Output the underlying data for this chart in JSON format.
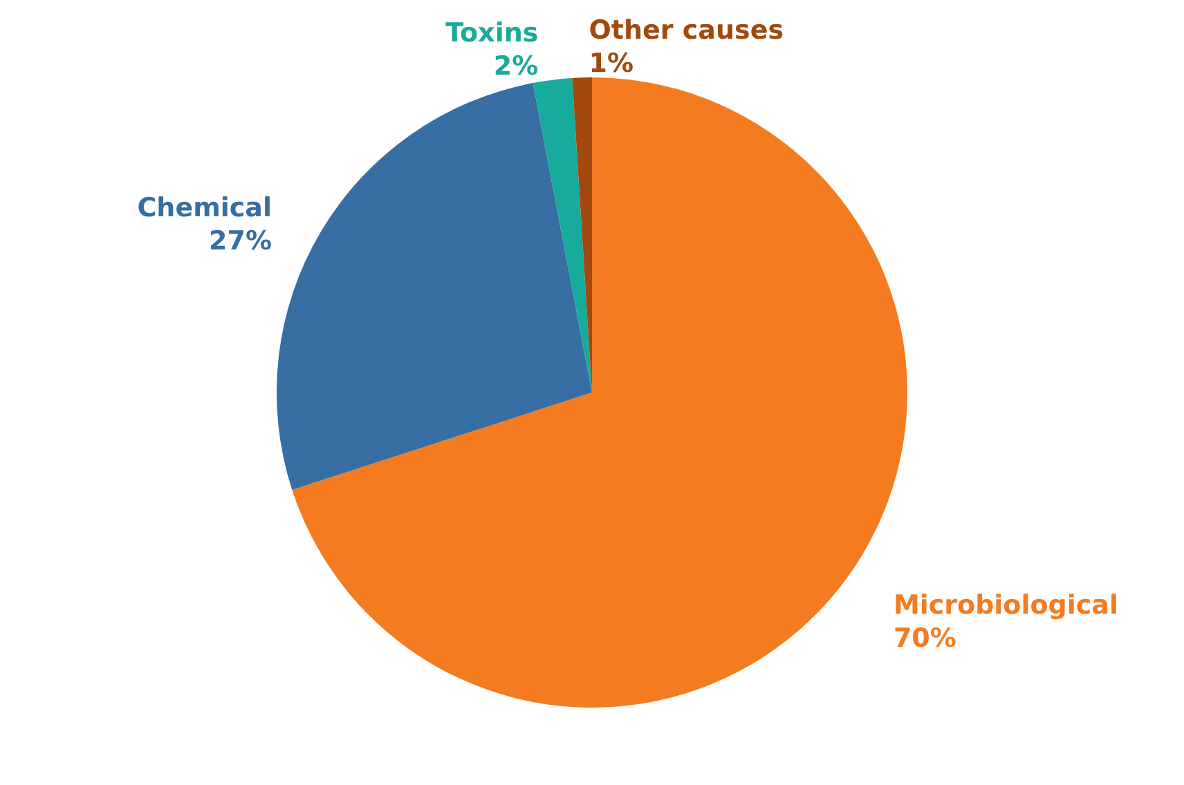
{
  "chart_data": {
    "type": "pie",
    "categories": [
      "Microbiological",
      "Chemical",
      "Toxins",
      "Other causes"
    ],
    "values": [
      70,
      27,
      2,
      1
    ],
    "value_labels": [
      "70%",
      "27%",
      "2%",
      "1%"
    ],
    "colors": [
      "#f47b20",
      "#376ea3",
      "#17ab9b",
      "#a3480e"
    ]
  }
}
